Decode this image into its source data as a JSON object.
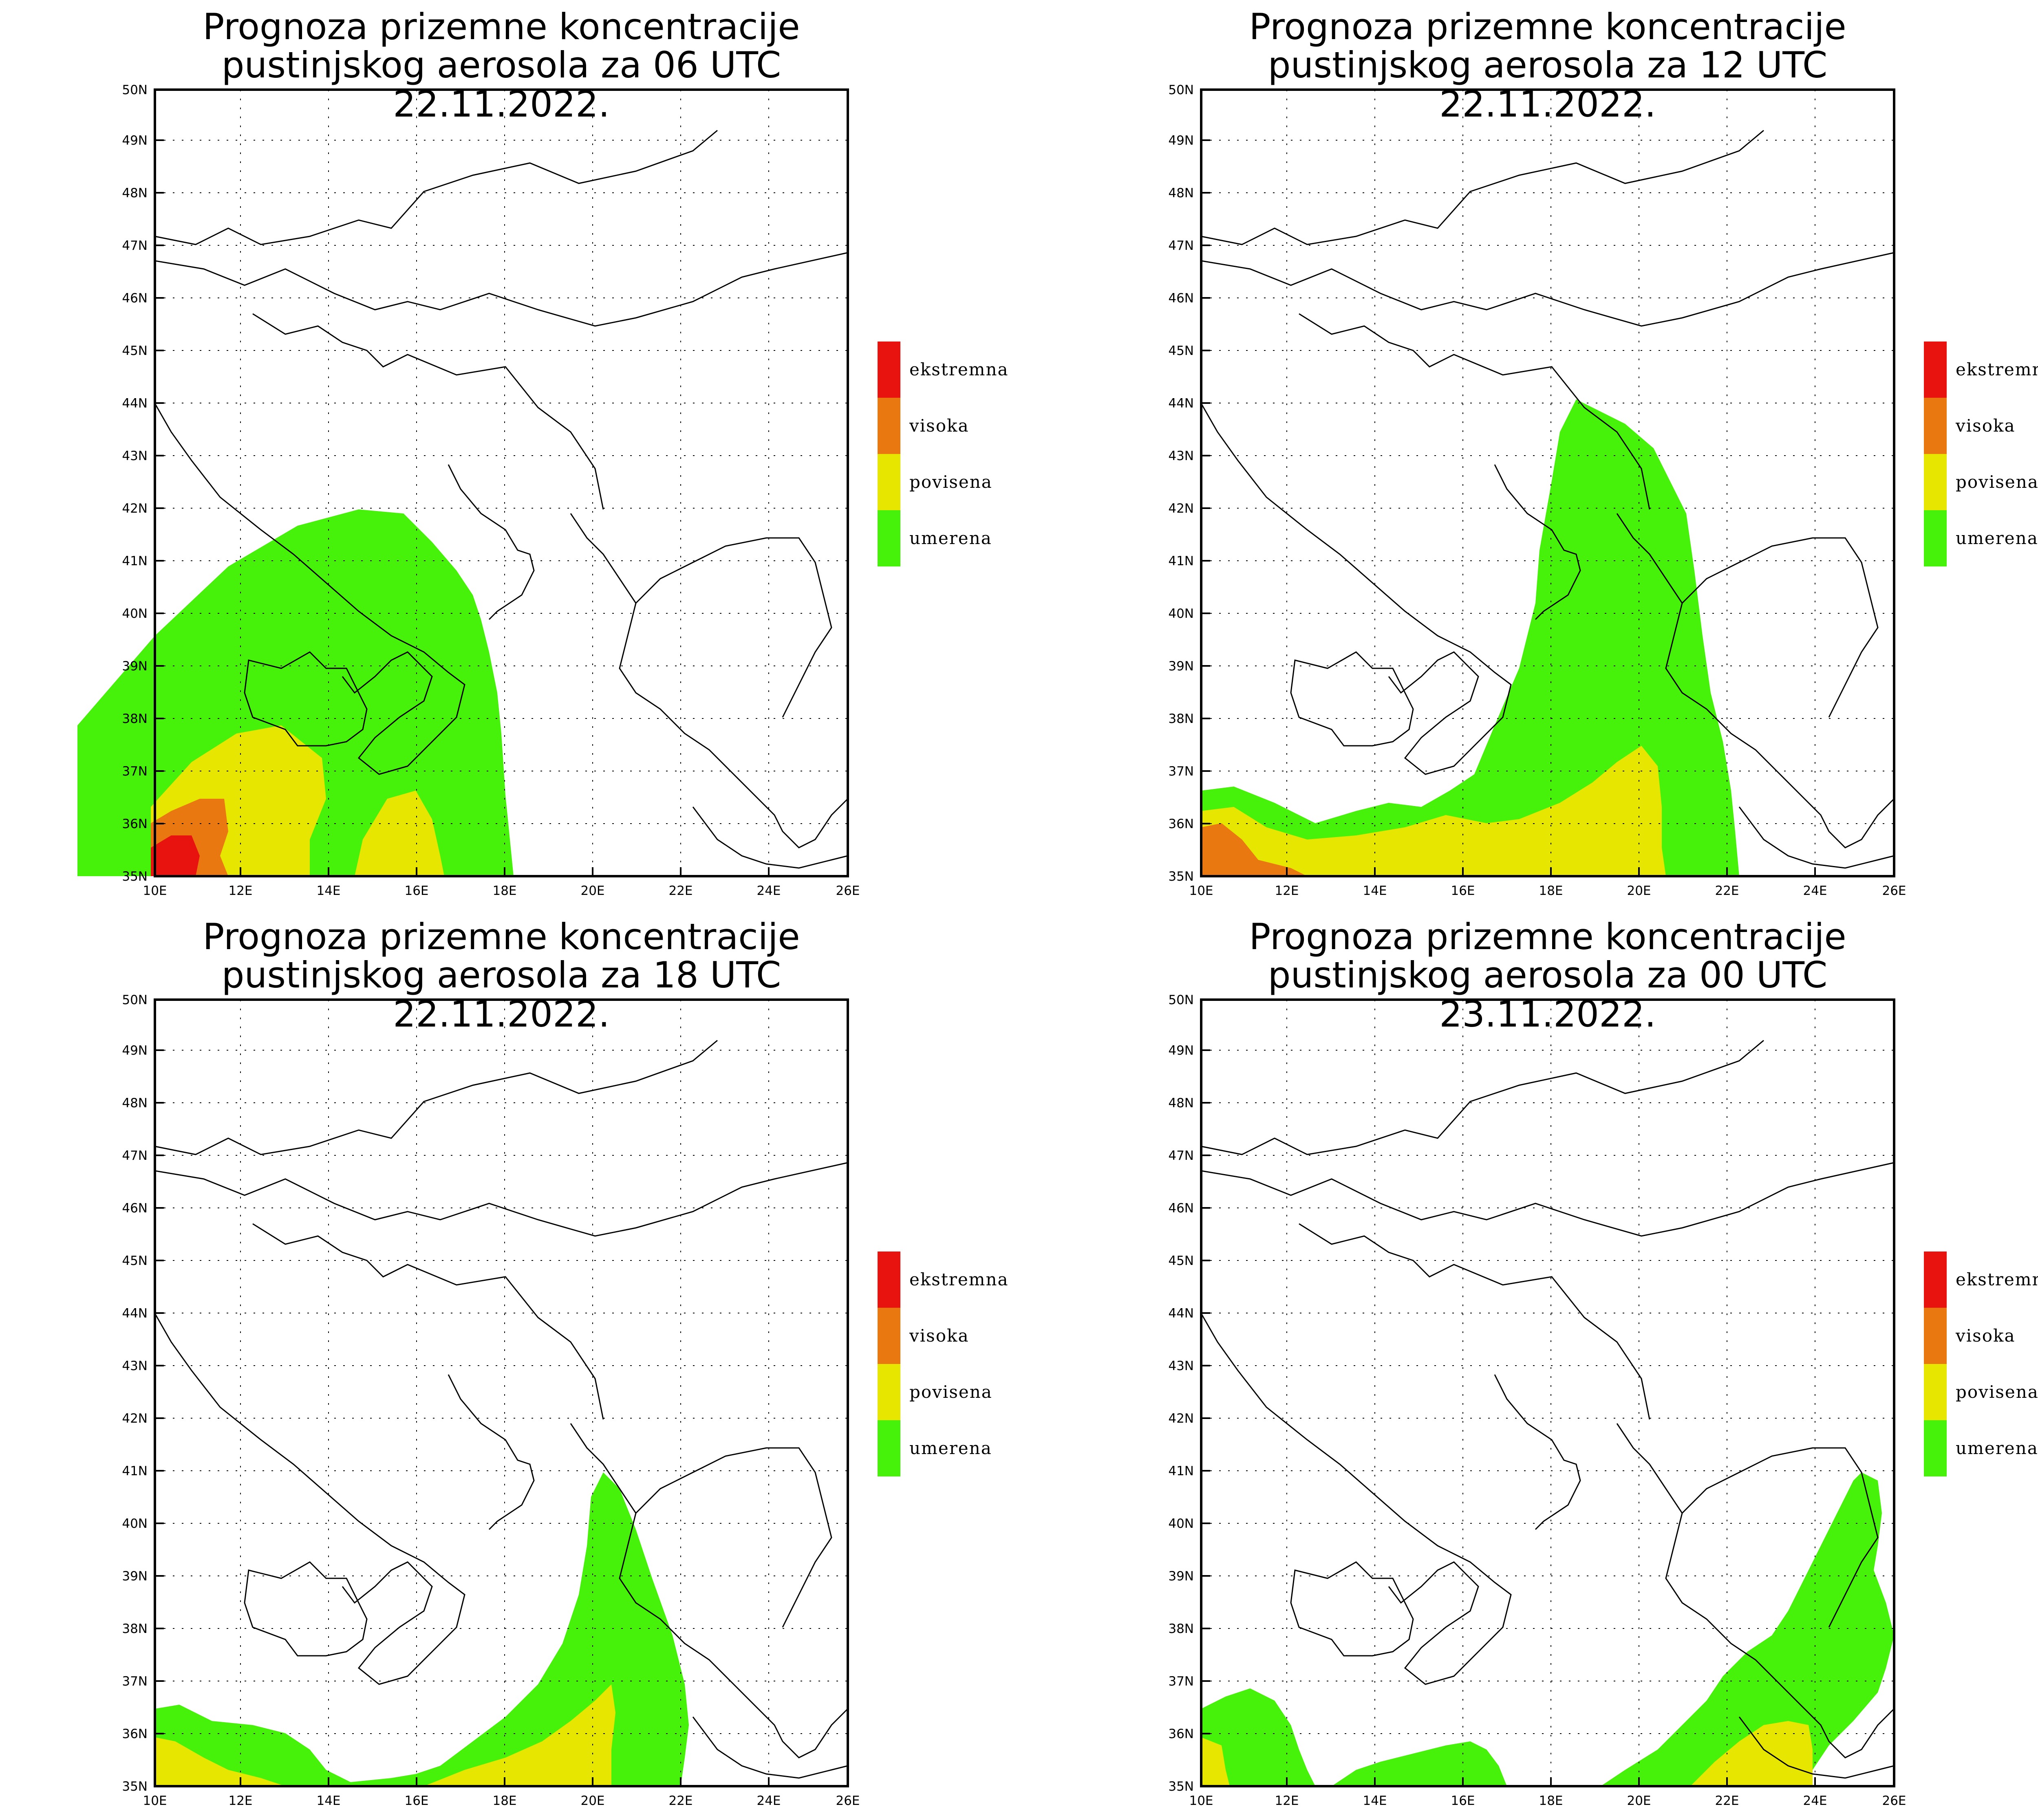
{
  "panels": [
    {
      "title1": "Prognoza prizemne koncentracije",
      "title2": "pustinjskog aerosola za 06 UTC 22.11.2022."
    },
    {
      "title1": "Prognoza prizemne koncentracije",
      "title2": "pustinjskog aerosola za 12 UTC 22.11.2022."
    },
    {
      "title1": "Prognoza prizemne koncentracije",
      "title2": "pustinjskog aerosola za 18 UTC 22.11.2022."
    },
    {
      "title1": "Prognoza prizemne koncentracije",
      "title2": "pustinjskog aerosola za 00 UTC 23.11.2022."
    }
  ],
  "legend": [
    {
      "label": "ekstremna",
      "color": "#e8120f"
    },
    {
      "label": "visoka",
      "color": "#e8780f"
    },
    {
      "label": "povisena",
      "color": "#e6e600"
    },
    {
      "label": "umerena",
      "color": "#46f20a"
    }
  ],
  "axes": {
    "lat_labels": [
      "35N",
      "36N",
      "37N",
      "38N",
      "39N",
      "40N",
      "41N",
      "42N",
      "43N",
      "44N",
      "45N",
      "46N",
      "47N",
      "48N",
      "49N",
      "50N"
    ],
    "lon_labels": [
      "10E",
      "12E",
      "14E",
      "16E",
      "18E",
      "20E",
      "22E",
      "24E",
      "26E"
    ],
    "lat_range": [
      35,
      50
    ],
    "lon_range": [
      10,
      26
    ]
  }
}
